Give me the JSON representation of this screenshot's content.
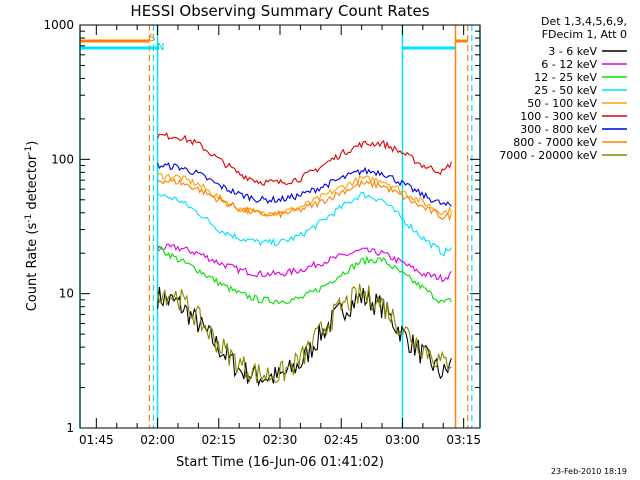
{
  "chart_data": {
    "type": "line",
    "title": "HESSI Observing Summary Count Rates",
    "xlabel": "Start Time (16-Jun-06 01:41:02)",
    "ylabel_main": "Count Rate (s",
    "ylabel_sup1": "-1",
    "ylabel_mid": " detector",
    "ylabel_sup2": "-1",
    "ylabel_end": ")",
    "ylog": true,
    "ylim": [
      1,
      1000
    ],
    "xlim_minutes": [
      "01:41",
      "03:19"
    ],
    "x_ticks": [
      "01:45",
      "02:00",
      "02:15",
      "02:30",
      "02:45",
      "03:00",
      "03:15"
    ],
    "y_ticks": [
      "1",
      "10",
      "100",
      "1000"
    ],
    "legend_header": [
      "Det 1,3,4,5,6,9,",
      "FDecim 1, Att 0"
    ],
    "footer_date": "23-Feb-2010 18:19",
    "flag_labels": {
      "saa": "S",
      "night": "N"
    },
    "markers": {
      "saa_dashed_orange": [
        "01:58",
        "03:16"
      ],
      "night_dashed_cyan": [
        "01:59",
        "03:17"
      ],
      "solid_cyan": [
        "01:41",
        "02:00",
        "03:00",
        "03:19"
      ],
      "solid_orange": [
        "03:13"
      ]
    },
    "x_times": [
      "02:00",
      "02:05",
      "02:10",
      "02:15",
      "02:20",
      "02:25",
      "02:30",
      "02:35",
      "02:40",
      "02:45",
      "02:50",
      "02:55",
      "03:00",
      "03:05",
      "03:10",
      "03:12"
    ],
    "series": [
      {
        "name": "3 - 6 keV",
        "color": "#000000",
        "values": [
          9.5,
          8.5,
          6,
          4,
          2.7,
          2.4,
          2.4,
          3,
          5,
          7.5,
          9.5,
          8,
          5,
          3.5,
          2.5,
          3
        ]
      },
      {
        "name": "6 - 12 keV",
        "color": "#e000e0",
        "values": [
          22,
          22,
          20,
          17,
          15,
          14,
          14,
          15,
          17,
          19,
          21,
          20,
          17,
          14,
          13,
          14
        ]
      },
      {
        "name": "12 - 25 keV",
        "color": "#00e000",
        "values": [
          22,
          18,
          15,
          12,
          10,
          9,
          8.8,
          9.2,
          11,
          14,
          17.5,
          18,
          14,
          11,
          8.5,
          9
        ]
      },
      {
        "name": "25 - 50 keV",
        "color": "#00e0ff",
        "values": [
          55,
          50,
          40,
          30,
          26,
          24,
          24,
          27,
          34,
          44,
          55,
          50,
          36,
          26,
          20,
          22
        ]
      },
      {
        "name": "50 - 100 keV",
        "color": "#ffa000",
        "values": [
          76,
          74,
          65,
          52,
          43,
          40,
          40,
          44,
          52,
          62,
          72,
          70,
          58,
          48,
          40,
          42
        ]
      },
      {
        "name": "100 - 300 keV",
        "color": "#e00000",
        "values": [
          150,
          148,
          130,
          100,
          78,
          68,
          67,
          72,
          88,
          110,
          130,
          132,
          112,
          90,
          80,
          95
        ]
      },
      {
        "name": "300 - 800 keV",
        "color": "#0000e0",
        "values": [
          90,
          88,
          78,
          64,
          55,
          50,
          50,
          54,
          62,
          72,
          82,
          80,
          66,
          54,
          46,
          45
        ]
      },
      {
        "name": "800 - 7000 keV",
        "color": "#ff8000",
        "values": [
          70,
          68,
          60,
          50,
          43,
          39,
          39,
          42,
          48,
          57,
          66,
          64,
          53,
          44,
          37,
          38
        ]
      },
      {
        "name": "7000 - 20000 keV",
        "color": "#888800",
        "values": [
          10.5,
          9.5,
          6.5,
          4.2,
          3,
          2.5,
          2.5,
          3.2,
          5.2,
          8,
          10,
          8.5,
          5.5,
          4,
          3,
          3.2
        ]
      }
    ]
  }
}
